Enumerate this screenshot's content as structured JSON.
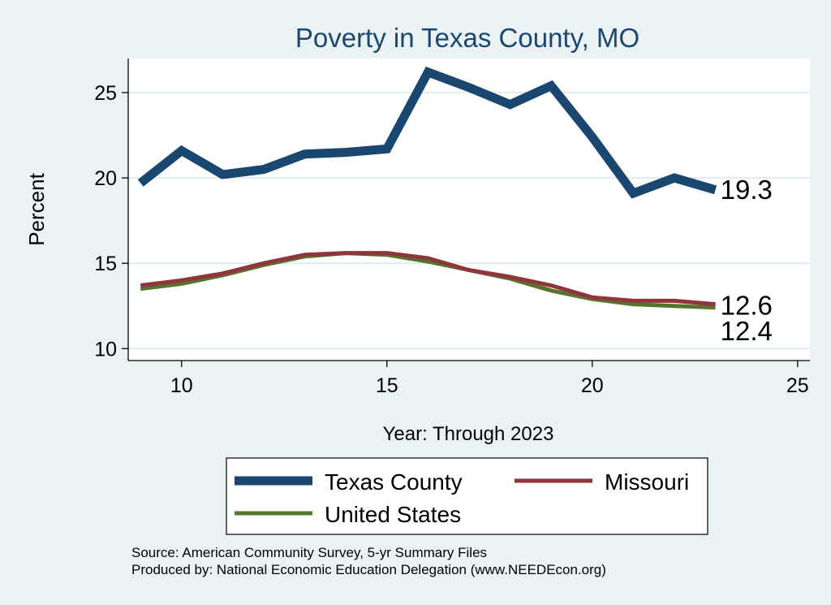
{
  "chart_data": {
    "type": "line",
    "title": "Poverty in Texas County, MO",
    "xlabel": "Year: Through 2023",
    "ylabel": "Percent",
    "xlim": [
      8.7,
      25.3
    ],
    "ylim": [
      9.3,
      27.0
    ],
    "xticks": [
      10,
      15,
      20,
      25
    ],
    "yticks": [
      10,
      15,
      20,
      25
    ],
    "grid": "horizontal",
    "legend_position": "bottom",
    "series": [
      {
        "name": "Texas County",
        "color": "#1a476f",
        "x": [
          9,
          10,
          11,
          12,
          13,
          14,
          15,
          16,
          17,
          18,
          19,
          20,
          21,
          22,
          23
        ],
        "y": [
          19.7,
          21.6,
          20.2,
          20.5,
          21.4,
          21.5,
          21.7,
          26.2,
          25.3,
          24.3,
          25.4,
          22.4,
          19.1,
          20.0,
          19.3
        ],
        "end_label": "19.3"
      },
      {
        "name": "Missouri",
        "color": "#90353b",
        "x": [
          9,
          10,
          11,
          12,
          13,
          14,
          15,
          16,
          17,
          18,
          19,
          20,
          21,
          22,
          23
        ],
        "y": [
          13.7,
          14.0,
          14.4,
          15.0,
          15.5,
          15.6,
          15.6,
          15.3,
          14.6,
          14.2,
          13.7,
          13.0,
          12.8,
          12.8,
          12.6
        ],
        "end_label": "12.6"
      },
      {
        "name": "United States",
        "color": "#55752f",
        "x": [
          9,
          10,
          11,
          12,
          13,
          14,
          15,
          16,
          17,
          18,
          19,
          20,
          21,
          22,
          23
        ],
        "y": [
          13.5,
          13.8,
          14.3,
          14.9,
          15.4,
          15.6,
          15.5,
          15.1,
          14.6,
          14.1,
          13.4,
          12.9,
          12.6,
          12.5,
          12.4
        ],
        "end_label": "12.4"
      }
    ],
    "notes": [
      "Source: American Community Survey, 5-yr Summary Files",
      "Produced by: National Economic Education Delegation (www.NEEDEcon.org)"
    ]
  }
}
